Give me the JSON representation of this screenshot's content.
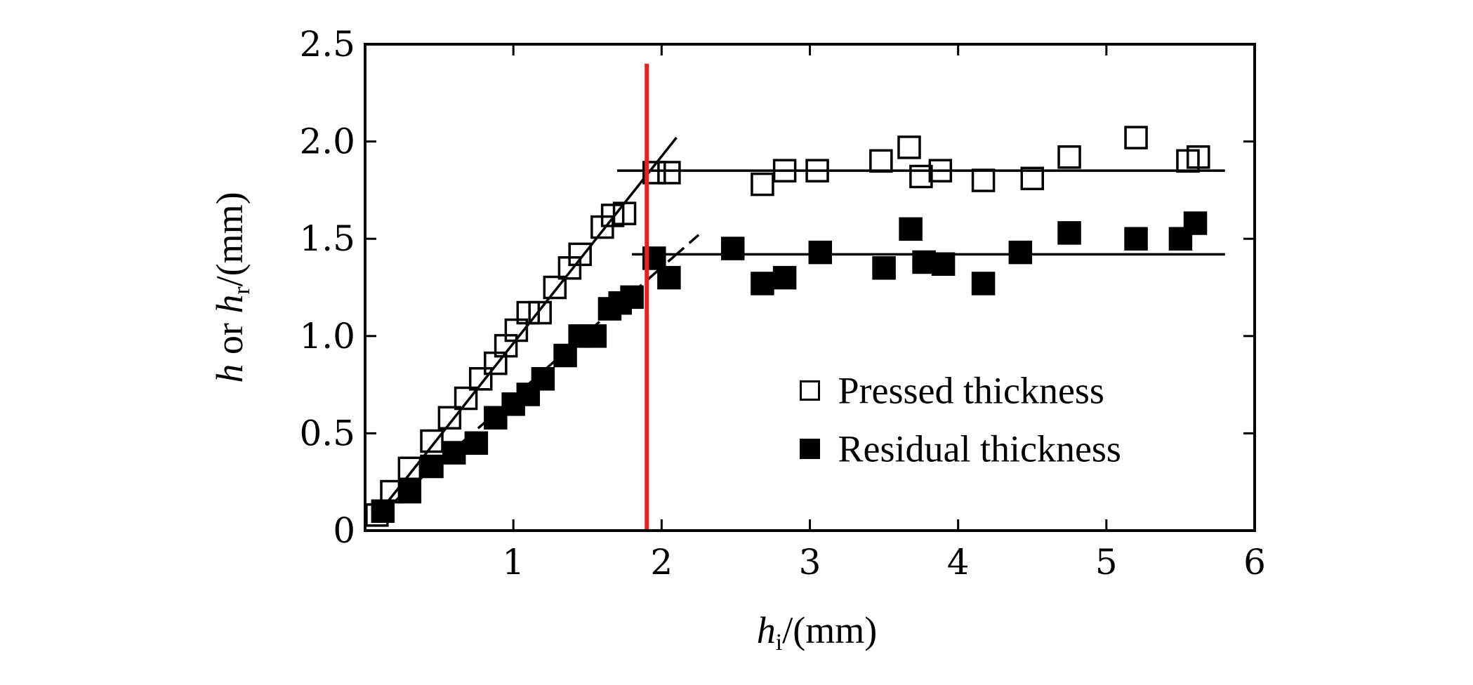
{
  "chart_data": {
    "type": "scatter",
    "title": "",
    "xlabel": {
      "var": "h",
      "sub": "i",
      "unit": "/(mm)"
    },
    "ylabel": {
      "var1": "h",
      "or": " or ",
      "var2": "h",
      "sub": "r",
      "unit": "/(mm)"
    },
    "xlim": [
      0,
      6
    ],
    "ylim": [
      0,
      2.5
    ],
    "x_ticks": [
      {
        "value": 1,
        "label": "1"
      },
      {
        "value": 2,
        "label": "2"
      },
      {
        "value": 3,
        "label": "3"
      },
      {
        "value": 4,
        "label": "4"
      },
      {
        "value": 5,
        "label": "5"
      },
      {
        "value": 6,
        "label": "6"
      }
    ],
    "y_ticks": [
      {
        "value": 0,
        "label": "0"
      },
      {
        "value": 0.5,
        "label": "0.5"
      },
      {
        "value": 1.0,
        "label": "1.0"
      },
      {
        "value": 1.5,
        "label": "1.5"
      },
      {
        "value": 2.0,
        "label": "2.0"
      },
      {
        "value": 2.5,
        "label": "2.5"
      }
    ],
    "legend_position": "center-right",
    "series": [
      {
        "name": "Pressed thickness",
        "marker": "open-square",
        "x": [
          0.08,
          0.18,
          0.3,
          0.45,
          0.57,
          0.68,
          0.78,
          0.88,
          0.95,
          1.02,
          1.1,
          1.18,
          1.28,
          1.38,
          1.45,
          1.6,
          1.67,
          1.75,
          1.95,
          2.05,
          2.68,
          2.83,
          3.05,
          3.48,
          3.67,
          3.75,
          3.88,
          4.17,
          4.5,
          4.75,
          5.2,
          5.55,
          5.62
        ],
        "y": [
          0.08,
          0.2,
          0.32,
          0.46,
          0.58,
          0.68,
          0.78,
          0.86,
          0.95,
          1.03,
          1.12,
          1.12,
          1.25,
          1.35,
          1.42,
          1.56,
          1.62,
          1.63,
          1.84,
          1.84,
          1.78,
          1.85,
          1.85,
          1.9,
          1.97,
          1.82,
          1.85,
          1.8,
          1.81,
          1.92,
          2.02,
          1.9,
          1.92
        ]
      },
      {
        "name": "Residual thickness",
        "marker": "filled-square",
        "x": [
          0.12,
          0.3,
          0.45,
          0.6,
          0.75,
          0.88,
          1.0,
          1.1,
          1.2,
          1.35,
          1.45,
          1.55,
          1.65,
          1.72,
          1.8,
          1.95,
          2.05,
          2.48,
          2.68,
          2.83,
          3.07,
          3.5,
          3.68,
          3.77,
          3.9,
          4.17,
          4.42,
          4.75,
          5.2,
          5.5,
          5.6
        ],
        "y": [
          0.1,
          0.2,
          0.33,
          0.4,
          0.45,
          0.58,
          0.65,
          0.7,
          0.78,
          0.9,
          1.0,
          1.0,
          1.14,
          1.17,
          1.2,
          1.4,
          1.3,
          1.45,
          1.27,
          1.3,
          1.43,
          1.35,
          1.55,
          1.38,
          1.37,
          1.27,
          1.43,
          1.53,
          1.5,
          1.5,
          1.58
        ]
      }
    ],
    "fit_lines": [
      {
        "name": "pressed-linear-fit",
        "dash": false,
        "points": [
          [
            0.05,
            0.05
          ],
          [
            2.1,
            2.02
          ]
        ]
      },
      {
        "name": "pressed-plateau",
        "dash": false,
        "points": [
          [
            1.7,
            1.85
          ],
          [
            5.8,
            1.85
          ]
        ]
      },
      {
        "name": "residual-linear-fit",
        "dash": true,
        "points": [
          [
            0.05,
            0.05
          ],
          [
            2.25,
            1.52
          ]
        ]
      },
      {
        "name": "residual-plateau",
        "dash": false,
        "points": [
          [
            1.8,
            1.42
          ],
          [
            5.8,
            1.42
          ]
        ]
      }
    ],
    "vertical_marker": {
      "x": 1.9,
      "y_top": 2.4,
      "color": "#e8211e"
    }
  }
}
